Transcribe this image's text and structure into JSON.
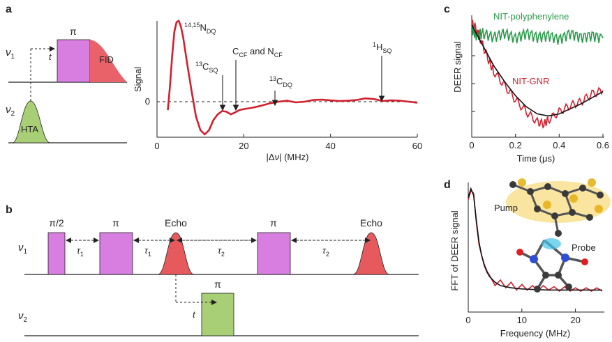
{
  "panel_a": {
    "label": "a",
    "pulse_sequence": {
      "nu1": "ν",
      "nu1_sub": "1",
      "nu2": "ν",
      "nu2_sub": "2",
      "pi": "π",
      "fid": "FID",
      "t": "t",
      "hta": "HTA"
    },
    "spectrum": {
      "ylabel": "Signal",
      "zero_label": "0",
      "xlabel_prefix": "|Δ",
      "xlabel_nu": "ν",
      "xlabel_suffix": "| (MHz)",
      "xticks": [
        "0",
        "20",
        "40",
        "60"
      ],
      "annotations": [
        {
          "sup": "14,15",
          "main": "N",
          "sub": "DQ"
        },
        {
          "sup": "13",
          "main": "C",
          "sub": "SQ"
        },
        {
          "main": "C",
          "sub": "CF",
          "mid": " and N",
          "sub2": "CF"
        },
        {
          "sup": "13",
          "main": "C",
          "sub": "DQ"
        },
        {
          "sup": "1",
          "main": "H",
          "sub": "SQ"
        }
      ]
    }
  },
  "panel_b": {
    "label": "b",
    "nu1": "ν",
    "nu1_sub": "1",
    "nu2": "ν",
    "nu2_sub": "2",
    "pulse_pi2": "π/2",
    "pulse_pi": "π",
    "echo": "Echo",
    "tau1": "τ",
    "tau1_sub": "1",
    "tau2": "τ",
    "tau2_sub": "2",
    "t": "t"
  },
  "panel_c": {
    "label": "c",
    "ylabel": "DEER signal",
    "xlabel": "Time (μs)",
    "xticks": [
      "0",
      "0.2",
      "0.4",
      "0.6"
    ],
    "series_labels": [
      "NIT-polyphenylene",
      "NIT-GNR"
    ]
  },
  "panel_d": {
    "label": "d",
    "ylabel": "FFT of DEER signal",
    "xlabel": "Frequency (MHz)",
    "xticks": [
      "0",
      "10",
      "20"
    ],
    "pump_label": "Pump",
    "probe_label": "Probe"
  },
  "colors": {
    "red": "#d21f2e",
    "green": "#2a9a4a",
    "magenta": "#d77ee0",
    "fid_red": "#e9626a",
    "hta_green": "#a9cf76",
    "echo_red": "#e65a5e",
    "gold": "#e8b21a"
  },
  "chart_data": [
    {
      "id": "a-spectrum",
      "type": "line",
      "xlabel": "|Δν| (MHz)",
      "ylabel": "Signal",
      "xlim": [
        0,
        60
      ],
      "ylim": [
        -1.0,
        2.5
      ],
      "x": [
        2.5,
        3,
        3.5,
        4,
        4.5,
        5,
        5.5,
        6,
        7,
        8,
        9,
        10,
        11,
        12,
        13,
        14,
        15,
        16,
        17,
        18,
        19,
        20,
        22,
        24,
        26,
        28,
        30,
        32,
        34,
        36,
        38,
        40,
        42,
        44,
        46,
        48,
        50,
        52,
        54,
        56,
        58,
        60
      ],
      "y": [
        -0.25,
        0.5,
        1.4,
        2.1,
        2.38,
        2.42,
        2.25,
        1.95,
        1.1,
        0.3,
        -0.45,
        -0.85,
        -0.98,
        -0.85,
        -0.55,
        -0.38,
        -0.28,
        -0.3,
        -0.38,
        -0.32,
        -0.25,
        -0.22,
        -0.18,
        -0.12,
        -0.05,
        0.0,
        0.03,
        -0.02,
        0.0,
        0.05,
        0.06,
        0.04,
        0.02,
        0.03,
        0.05,
        0.1,
        0.08,
        0.02,
        0.04,
        0.03,
        0.0,
        -0.03
      ]
    },
    {
      "id": "c-deer",
      "type": "line",
      "xlabel": "Time (μs)",
      "ylabel": "DEER signal",
      "xlim": [
        0,
        0.6
      ],
      "series": [
        {
          "name": "NIT-polyphenylene",
          "x": [
            0,
            0.02,
            0.05,
            0.1,
            0.15,
            0.2,
            0.25,
            0.3,
            0.35,
            0.4,
            0.45,
            0.5,
            0.55,
            0.6
          ],
          "y": [
            0.95,
            0.88,
            0.9,
            0.86,
            0.9,
            0.85,
            0.9,
            0.86,
            0.88,
            0.84,
            0.9,
            0.86,
            0.88,
            0.85
          ]
        },
        {
          "name": "NIT-GNR",
          "x": [
            0,
            0.02,
            0.05,
            0.08,
            0.1,
            0.15,
            0.2,
            0.25,
            0.3,
            0.33,
            0.35,
            0.4,
            0.45,
            0.5,
            0.55,
            0.6
          ],
          "y": [
            1.0,
            0.95,
            0.78,
            0.62,
            0.52,
            0.38,
            0.24,
            0.12,
            0.02,
            0.0,
            0.04,
            0.12,
            0.18,
            0.22,
            0.3,
            0.33
          ]
        },
        {
          "name": "fit",
          "x": [
            0,
            0.05,
            0.1,
            0.15,
            0.2,
            0.25,
            0.3,
            0.35,
            0.4,
            0.45,
            0.5,
            0.55,
            0.6
          ],
          "y": [
            0.98,
            0.78,
            0.58,
            0.42,
            0.28,
            0.17,
            0.1,
            0.08,
            0.1,
            0.15,
            0.2,
            0.26,
            0.32
          ]
        }
      ]
    },
    {
      "id": "d-fft",
      "type": "line",
      "xlabel": "Frequency (MHz)",
      "ylabel": "FFT of DEER signal",
      "xlim": [
        0,
        25
      ],
      "series": [
        {
          "name": "data",
          "x": [
            0,
            0.5,
            1,
            1.5,
            2,
            2.5,
            3,
            3.5,
            4,
            5,
            6,
            7,
            8,
            9,
            10,
            11,
            12,
            13,
            14,
            15,
            16,
            17,
            18,
            19,
            20,
            21,
            22,
            23,
            24,
            25
          ],
          "y": [
            0.82,
            0.9,
            0.88,
            0.62,
            0.42,
            0.32,
            0.24,
            0.18,
            0.14,
            0.05,
            0.1,
            0.03,
            0.08,
            0.01,
            0.06,
            0.01,
            0.05,
            0.0,
            0.05,
            0.01,
            0.04,
            0.0,
            0.04,
            0.0,
            0.03,
            0.0,
            0.03,
            0.0,
            0.03,
            0.0
          ]
        },
        {
          "name": "fit",
          "x": [
            0,
            0.5,
            1,
            1.5,
            2,
            2.5,
            3,
            3.5,
            4,
            5,
            6,
            8,
            10,
            12,
            15,
            20,
            25
          ],
          "y": [
            0.84,
            0.92,
            0.86,
            0.64,
            0.44,
            0.32,
            0.23,
            0.17,
            0.13,
            0.08,
            0.05,
            0.03,
            0.02,
            0.015,
            0.01,
            0.01,
            0.01
          ]
        }
      ]
    }
  ]
}
